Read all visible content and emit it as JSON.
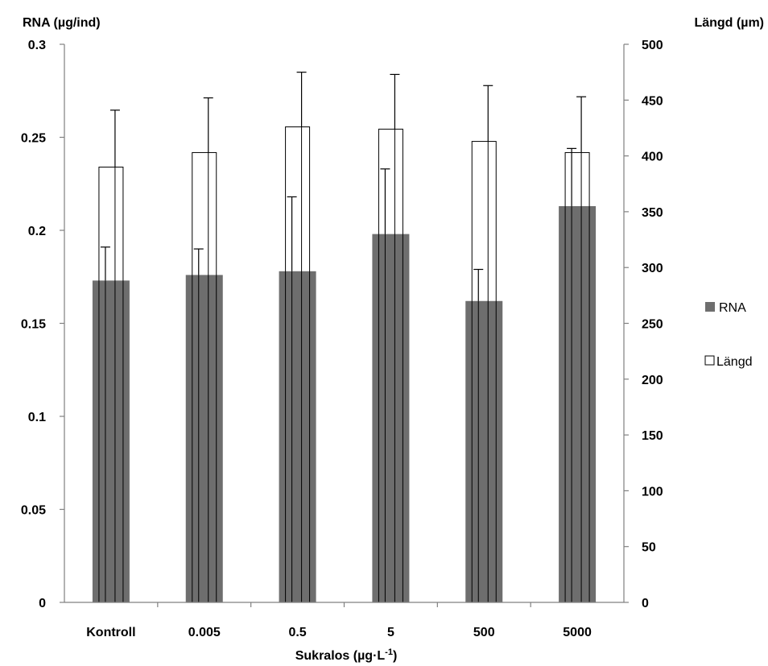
{
  "chart_data": {
    "type": "bar",
    "title": "",
    "xlabel": "Sukralos (µg·L",
    "xlabel_superscript": "-1",
    "xlabel_close": ")",
    "ylabel_left": "RNA (µg/ind)",
    "ylabel_right": "Längd (µm)",
    "categories": [
      "Kontroll",
      "0.005",
      "0.5",
      "5",
      "500",
      "5000"
    ],
    "ylim_left": [
      0,
      0.3
    ],
    "ylim_right": [
      0,
      500
    ],
    "yticks_left": [
      "0",
      "0.05",
      "0.1",
      "0.15",
      "0.2",
      "0.25",
      "0.3"
    ],
    "yticks_right": [
      "0",
      "50",
      "100",
      "150",
      "200",
      "250",
      "300",
      "350",
      "400",
      "450",
      "500"
    ],
    "grid": false,
    "legend_position": "right",
    "series": [
      {
        "name": "RNA",
        "axis": "left",
        "color": "#6e6e6e",
        "values": [
          0.173,
          0.176,
          0.178,
          0.198,
          0.162,
          0.213
        ],
        "errors": [
          0.018,
          0.014,
          0.04,
          0.035,
          0.017,
          0.031
        ]
      },
      {
        "name": "Längd",
        "axis": "right",
        "color": "#ffffff",
        "values": [
          390,
          403,
          426,
          424,
          413,
          403
        ],
        "errors": [
          51,
          49,
          49,
          49,
          50,
          50
        ]
      }
    ]
  }
}
